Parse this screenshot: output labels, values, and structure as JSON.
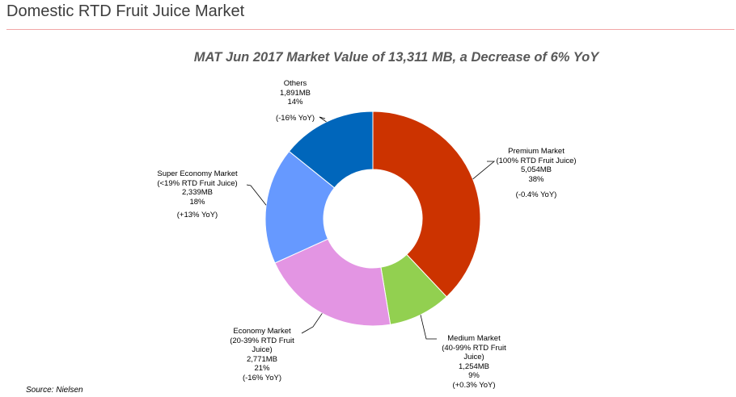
{
  "header": {
    "title": "Domestic RTD Fruit Juice Market"
  },
  "chart_data": {
    "type": "pie",
    "title": "MAT Jun 2017 Market Value of 13,311 MB, a Decrease of 6% YoY",
    "donut": true,
    "series": [
      {
        "name": "Premium Market",
        "sub_name": "(100% RTD Fruit Juice)",
        "value": 5054,
        "value_label": "5,054MB",
        "share": 38,
        "share_label": "38%",
        "yoy": "(-0.4% YoY)",
        "color": "#cc3300"
      },
      {
        "name": "Medium Market",
        "sub_name_1": "(40-99% RTD Fruit",
        "sub_name_2": "Juice)",
        "value": 1254,
        "value_label": "1,254MB",
        "share": 9,
        "share_label": "9%",
        "yoy": "(+0.3% YoY)",
        "color": "#92d050"
      },
      {
        "name": "Economy Market",
        "sub_name_1": "(20-39% RTD Fruit",
        "sub_name_2": "Juice)",
        "value": 2771,
        "value_label": "2,771MB",
        "share": 21,
        "share_label": "21%",
        "yoy": "(-16% YoY)",
        "color": "#e395e3"
      },
      {
        "name": "Super Economy Market",
        "sub_name": "(<19% RTD Fruit Juice)",
        "value": 2339,
        "value_label": "2,339MB",
        "share": 18,
        "share_label": "18%",
        "yoy": "(+13% YoY)",
        "color": "#6699ff"
      },
      {
        "name": "Others",
        "value": 1891,
        "value_label": "1,891MB",
        "share": 14,
        "share_label": "14%",
        "yoy": "(-16% YoY)",
        "color": "#0066bb"
      }
    ],
    "source": "Source:  Nielsen"
  }
}
